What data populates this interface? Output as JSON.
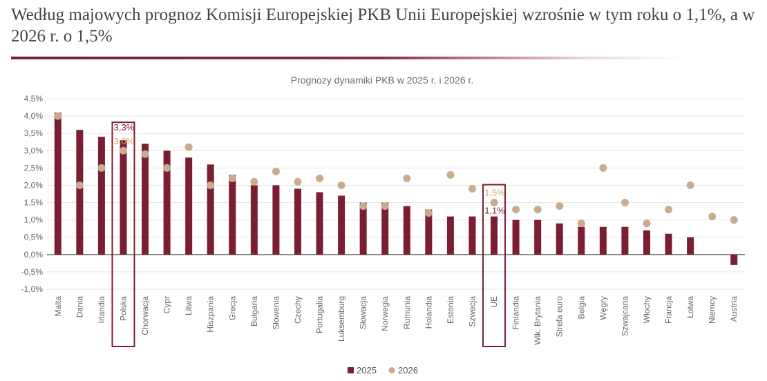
{
  "headline": "Według majowych prognoz Komisji Europejskiej PKB Unii Europejskiej wzrośnie w tym roku o 1,1%, a w 2026 r. o 1,5%",
  "colors": {
    "bar": "#7b1d33",
    "dot": "#c9ac8e",
    "highlight_box": "#7b1d33",
    "label_2025": "#7b1d33",
    "label_2026": "#d7a959"
  },
  "chart_data": {
    "type": "bar",
    "title": "Prognozy dynamiki PKB w 2025 r. i 2026 r.",
    "xlabel": "",
    "ylabel": "",
    "ylim": [
      -1.0,
      4.5
    ],
    "yticks": [
      -1.0,
      -0.5,
      0.0,
      0.5,
      1.0,
      1.5,
      2.0,
      2.5,
      3.0,
      3.5,
      4.0,
      4.5
    ],
    "ytick_labels": [
      "-1,0%",
      "-0,5%",
      "0,0%",
      "0,5%",
      "1,0%",
      "1,5%",
      "2,0%",
      "2,5%",
      "3,0%",
      "3,5%",
      "4,0%",
      "4,5%"
    ],
    "grid": true,
    "legend_position": "bottom",
    "categories": [
      "Malta",
      "Dania",
      "Irlandia",
      "Polska",
      "Chorwacja",
      "Cypr",
      "Litwa",
      "Hiszpania",
      "Grecja",
      "Bułgaria",
      "Słowenia",
      "Czechy",
      "Portugalia",
      "Luksemburg",
      "Słowacja",
      "Norwegia",
      "Rumunia",
      "Holandia",
      "Estonia",
      "Szwecja",
      "UE",
      "Finlandia",
      "Wlk. Brytania",
      "Strefa euro",
      "Belgia",
      "Węgry",
      "Szwajcaria",
      "Włochy",
      "Francja",
      "Łotwa",
      "Niemcy",
      "Austria"
    ],
    "series": [
      {
        "name": "2025",
        "kind": "bar",
        "values": [
          4.1,
          3.6,
          3.4,
          3.3,
          3.2,
          3.0,
          2.8,
          2.6,
          2.3,
          2.0,
          2.0,
          1.9,
          1.8,
          1.7,
          1.5,
          1.5,
          1.4,
          1.3,
          1.1,
          1.1,
          1.1,
          1.0,
          1.0,
          0.9,
          0.8,
          0.8,
          0.8,
          0.7,
          0.6,
          0.5,
          0.0,
          -0.3
        ]
      },
      {
        "name": "2026",
        "kind": "dot",
        "values": [
          4.0,
          2.0,
          2.5,
          3.0,
          2.9,
          2.5,
          3.1,
          2.0,
          2.2,
          2.1,
          2.4,
          2.1,
          2.2,
          2.0,
          1.4,
          1.4,
          2.2,
          1.2,
          2.3,
          1.9,
          1.5,
          1.3,
          1.3,
          1.4,
          0.9,
          2.5,
          1.5,
          0.9,
          1.3,
          2.0,
          1.1,
          1.0
        ]
      }
    ],
    "highlighted": [
      {
        "category": "Polska",
        "label_2025": "3,3%",
        "label_2026": "3,0%"
      },
      {
        "category": "UE",
        "label_2025": "1,1%",
        "label_2026": "1,5%"
      }
    ]
  }
}
